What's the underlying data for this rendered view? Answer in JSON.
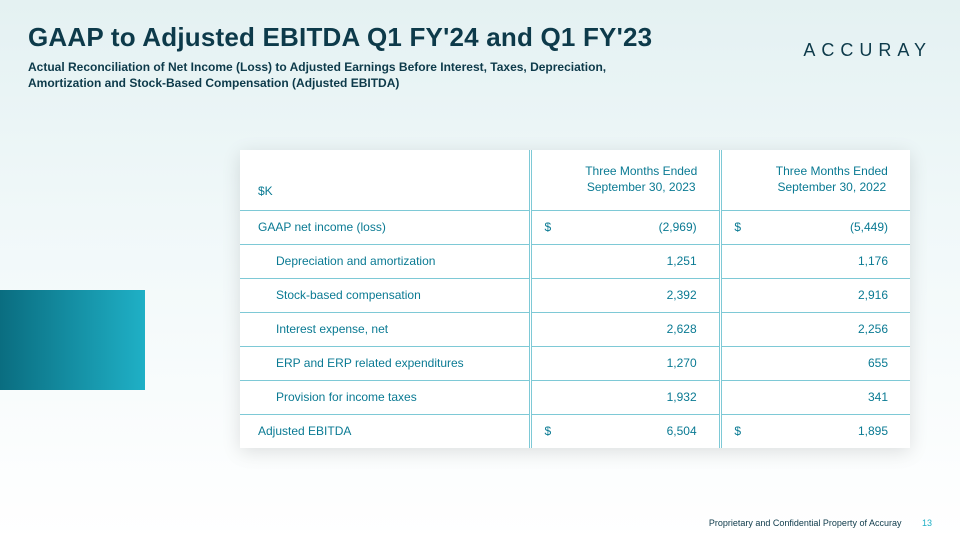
{
  "title": "GAAP to Adjusted EBITDA Q1 FY'24 and Q1 FY'23",
  "subtitle": "Actual Reconciliation of Net Income (Loss) to Adjusted Earnings Before Interest, Taxes, Depreciation, Amortization and Stock-Based Compensation (Adjusted EBITDA)",
  "brand": "ACCURAY",
  "unit_label": "$K",
  "periods": [
    {
      "line1": "Three Months Ended",
      "line2": "September 30, 2023"
    },
    {
      "line1": "Three Months Ended",
      "line2": "September 30, 2022"
    }
  ],
  "rows": [
    {
      "label": "GAAP net income (loss)",
      "indent": false,
      "sym": "$",
      "v1": "(2,969)",
      "v2": "(5,449)"
    },
    {
      "label": "Depreciation and amortization",
      "indent": true,
      "sym": "",
      "v1": "1,251",
      "v2": "1,176"
    },
    {
      "label": "Stock-based compensation",
      "indent": true,
      "sym": "",
      "v1": "2,392",
      "v2": "2,916"
    },
    {
      "label": "Interest expense, net",
      "indent": true,
      "sym": "",
      "v1": "2,628",
      "v2": "2,256"
    },
    {
      "label": "ERP and ERP related expenditures",
      "indent": true,
      "sym": "",
      "v1": "1,270",
      "v2": "655"
    },
    {
      "label": "Provision for income taxes",
      "indent": true,
      "sym": "",
      "v1": "1,932",
      "v2": "341"
    },
    {
      "label": "Adjusted EBITDA",
      "indent": false,
      "sym": "$",
      "v1": "6,504",
      "v2": "1,895"
    }
  ],
  "footer_text": "Proprietary and Confidential Property of Accuray",
  "page_number": "13",
  "colors": {
    "text_primary": "#0d3a4a",
    "table_text": "#0a7a93",
    "rule": "#7ec9d6",
    "accent": "#1fb0c6"
  }
}
